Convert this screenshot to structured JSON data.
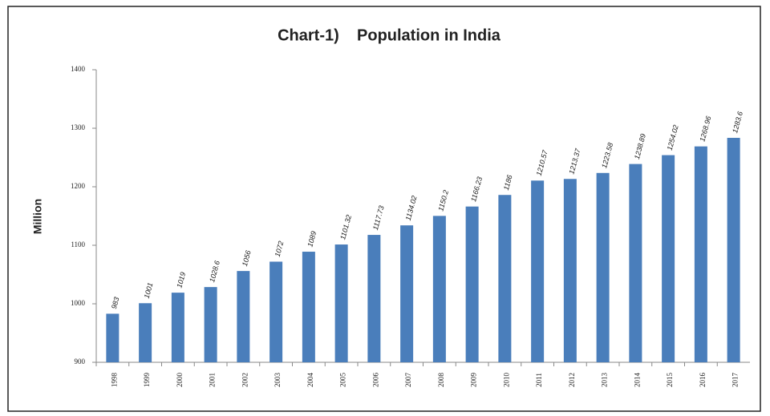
{
  "chart_data": {
    "type": "bar",
    "title": "Chart-1)    Population in India",
    "y_label": "Million",
    "categories": [
      "1998",
      "1999",
      "2000",
      "2001",
      "2002",
      "2003",
      "2004",
      "2005",
      "2006",
      "2007",
      "2008",
      "2009",
      "2010",
      "2011",
      "2012",
      "2013",
      "2014",
      "2015",
      "2016",
      "2017"
    ],
    "values": [
      983,
      1001,
      1019,
      1028.6,
      1056,
      1072,
      1089,
      1101.32,
      1117.73,
      1134.02,
      1150.2,
      1166.23,
      1186,
      1210.57,
      1213.37,
      1223.58,
      1238.89,
      1254.02,
      1268.96,
      1283.6
    ],
    "color": "#4a7ebb",
    "ylim": [
      900,
      1400
    ],
    "yticks": [
      900,
      1000,
      1100,
      1200,
      1300,
      1400
    ],
    "grid": false
  }
}
